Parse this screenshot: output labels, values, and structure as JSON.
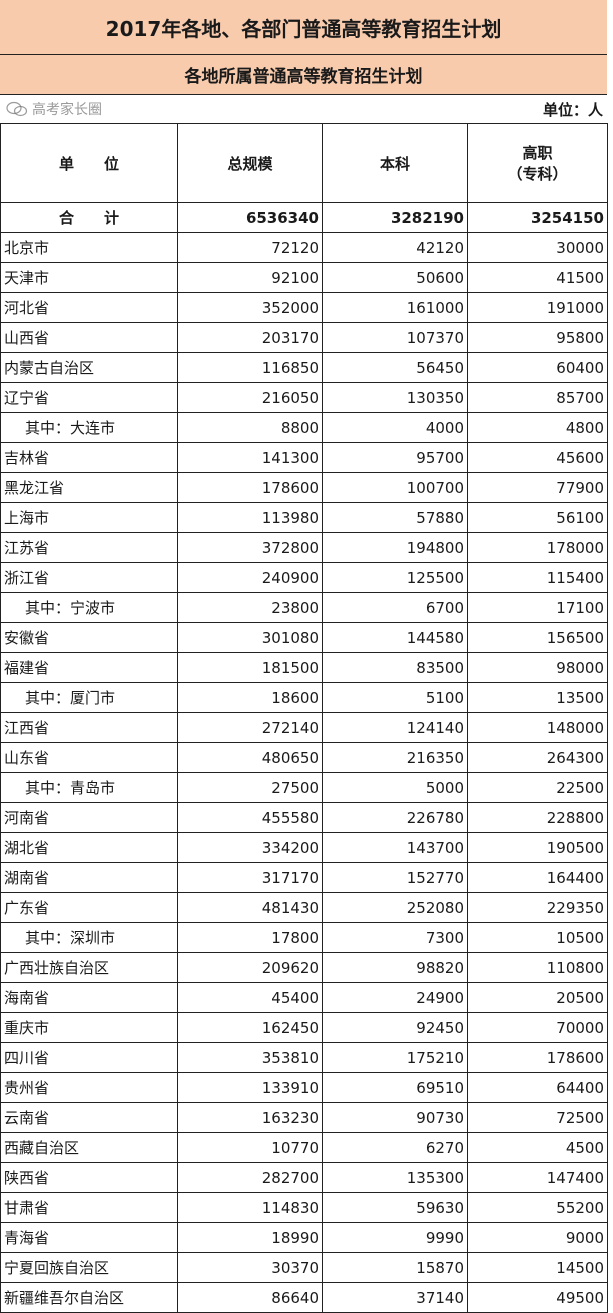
{
  "title": "2017年各地、各部门普通高等教育招生计划",
  "subtitle": "各地所属普通高等教育招生计划",
  "unit": "单位：人",
  "headers": {
    "c0a": "单",
    "c0b": "位",
    "c1": "总规模",
    "c2": "本科",
    "c3a": "高职",
    "c3b": "（专科）"
  },
  "total": {
    "name_a": "合",
    "name_b": "计",
    "total": "6536340",
    "undergrad": "3282190",
    "vocational": "3254150"
  },
  "rows": [
    [
      "北京市",
      "72120",
      "42120",
      "30000",
      0
    ],
    [
      "天津市",
      "92100",
      "50600",
      "41500",
      0
    ],
    [
      "河北省",
      "352000",
      "161000",
      "191000",
      0
    ],
    [
      "山西省",
      "203170",
      "107370",
      "95800",
      0
    ],
    [
      "内蒙古自治区",
      "116850",
      "56450",
      "60400",
      0
    ],
    [
      "辽宁省",
      "216050",
      "130350",
      "85700",
      0
    ],
    [
      "其中：大连市",
      "8800",
      "4000",
      "4800",
      1
    ],
    [
      "吉林省",
      "141300",
      "95700",
      "45600",
      0
    ],
    [
      "黑龙江省",
      "178600",
      "100700",
      "77900",
      0
    ],
    [
      "上海市",
      "113980",
      "57880",
      "56100",
      0
    ],
    [
      "江苏省",
      "372800",
      "194800",
      "178000",
      0
    ],
    [
      "浙江省",
      "240900",
      "125500",
      "115400",
      0
    ],
    [
      "其中：宁波市",
      "23800",
      "6700",
      "17100",
      1
    ],
    [
      "安徽省",
      "301080",
      "144580",
      "156500",
      0
    ],
    [
      "福建省",
      "181500",
      "83500",
      "98000",
      0
    ],
    [
      "其中：厦门市",
      "18600",
      "5100",
      "13500",
      1
    ],
    [
      "江西省",
      "272140",
      "124140",
      "148000",
      0
    ],
    [
      "山东省",
      "480650",
      "216350",
      "264300",
      0
    ],
    [
      "其中：青岛市",
      "27500",
      "5000",
      "22500",
      1
    ],
    [
      "河南省",
      "455580",
      "226780",
      "228800",
      0
    ],
    [
      "湖北省",
      "334200",
      "143700",
      "190500",
      0
    ],
    [
      "湖南省",
      "317170",
      "152770",
      "164400",
      0
    ],
    [
      "广东省",
      "481430",
      "252080",
      "229350",
      0
    ],
    [
      "其中：深圳市",
      "17800",
      "7300",
      "10500",
      1
    ],
    [
      "广西壮族自治区",
      "209620",
      "98820",
      "110800",
      0
    ],
    [
      "海南省",
      "45400",
      "24900",
      "20500",
      0
    ],
    [
      "重庆市",
      "162450",
      "92450",
      "70000",
      0
    ],
    [
      "四川省",
      "353810",
      "175210",
      "178600",
      0
    ],
    [
      "贵州省",
      "133910",
      "69510",
      "64400",
      0
    ],
    [
      "云南省",
      "163230",
      "90730",
      "72500",
      0
    ],
    [
      "西藏自治区",
      "10770",
      "6270",
      "4500",
      0
    ],
    [
      "陕西省",
      "282700",
      "135300",
      "147400",
      0
    ],
    [
      "甘肃省",
      "114830",
      "59630",
      "55200",
      0
    ],
    [
      "青海省",
      "18990",
      "9990",
      "9000",
      0
    ],
    [
      "宁夏回族自治区",
      "30370",
      "15870",
      "14500",
      0
    ],
    [
      "新疆维吾尔自治区",
      "86640",
      "37140",
      "49500",
      0
    ]
  ],
  "watermark": {
    "icon": "wechat-icon",
    "text": "高考家长圈"
  }
}
